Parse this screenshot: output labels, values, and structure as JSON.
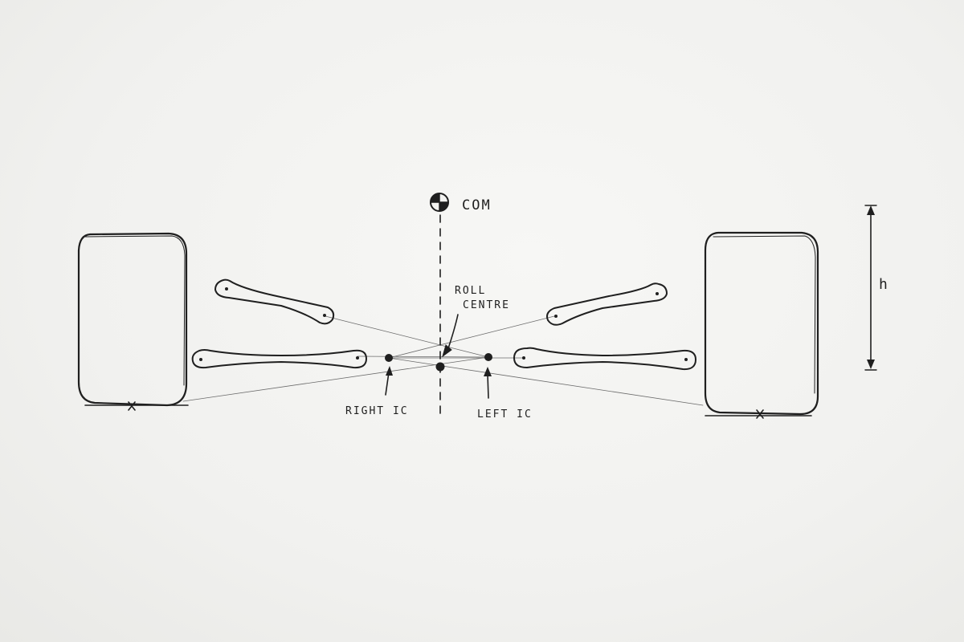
{
  "labels": {
    "com": "COM",
    "roll_centre_line1": "ROLL",
    "roll_centre_line2": "CENTRE",
    "right_ic": "RIGHT IC",
    "left_ic": "LEFT IC",
    "height": "h"
  },
  "colors": {
    "ink": "#1f1f1f",
    "paper": "#f3f3f1"
  }
}
